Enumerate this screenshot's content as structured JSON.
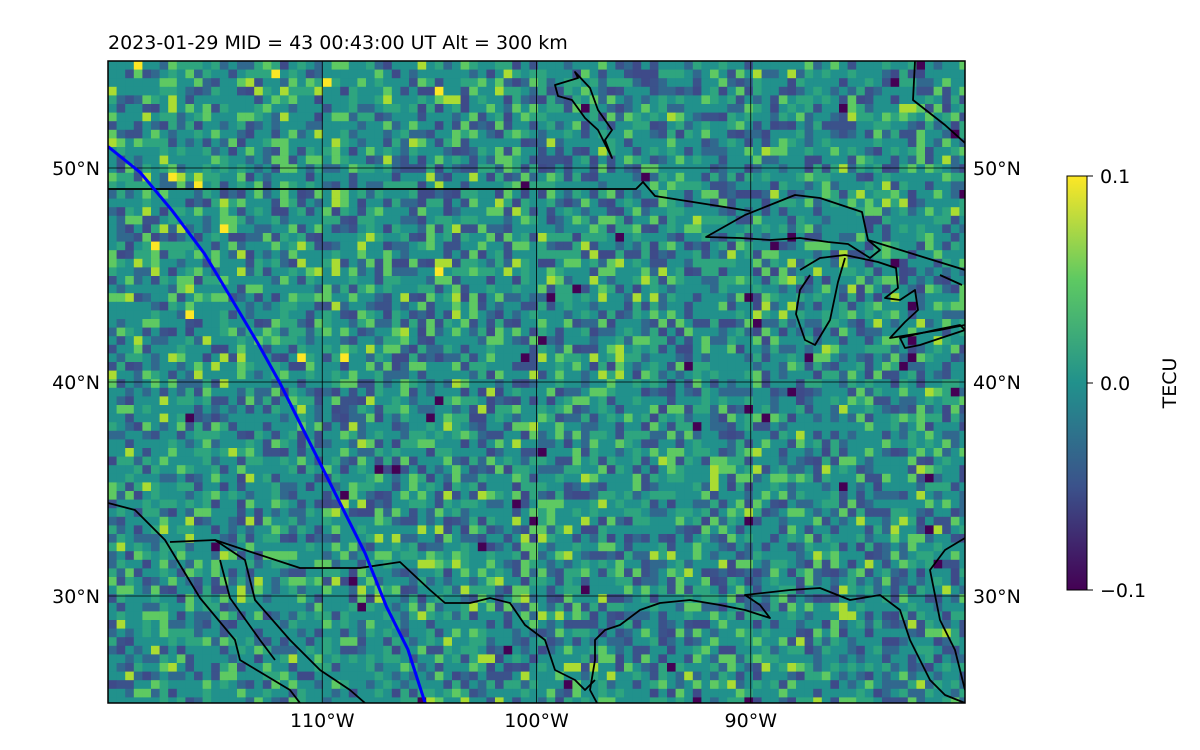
{
  "title": "2023-01-29  MID =  43    00:43:00  UT  Alt = 300 km",
  "map": {
    "lon_range": [
      -120,
      -80
    ],
    "lat_range": [
      25,
      55
    ],
    "lon_ticks": [
      {
        "value": -110,
        "label": "110°W"
      },
      {
        "value": -100,
        "label": "100°W"
      },
      {
        "value": -90,
        "label": "90°W"
      }
    ],
    "lat_ticks": [
      {
        "value": 50,
        "label": "50°N"
      },
      {
        "value": 40,
        "label": "40°N"
      },
      {
        "value": 30,
        "label": "30°N"
      }
    ],
    "grid": true,
    "field_description_colors": [
      "#440154",
      "#3b528b",
      "#21918c",
      "#5ec962",
      "#fde725"
    ],
    "track_color": "#0000ff",
    "track": [
      [
        -120,
        51.0
      ],
      [
        -118.5,
        49.8
      ],
      [
        -117.0,
        48.0
      ],
      [
        -115.5,
        46.0
      ],
      [
        -114.3,
        44.0
      ],
      [
        -113.0,
        41.8
      ],
      [
        -112.0,
        40.0
      ],
      [
        -111.0,
        38.0
      ],
      [
        -110.0,
        36.0
      ],
      [
        -109.0,
        34.0
      ],
      [
        -108.0,
        32.0
      ],
      [
        -107.0,
        29.5
      ],
      [
        -106.0,
        27.5
      ],
      [
        -105.2,
        25.0
      ]
    ]
  },
  "colorbar": {
    "label": "TECU",
    "min": -0.1,
    "max": 0.1,
    "ticks": [
      {
        "value": 0.1,
        "label": "0.1"
      },
      {
        "value": 0.0,
        "label": "0.0"
      },
      {
        "value": -0.1,
        "label": "−0.1"
      }
    ]
  }
}
